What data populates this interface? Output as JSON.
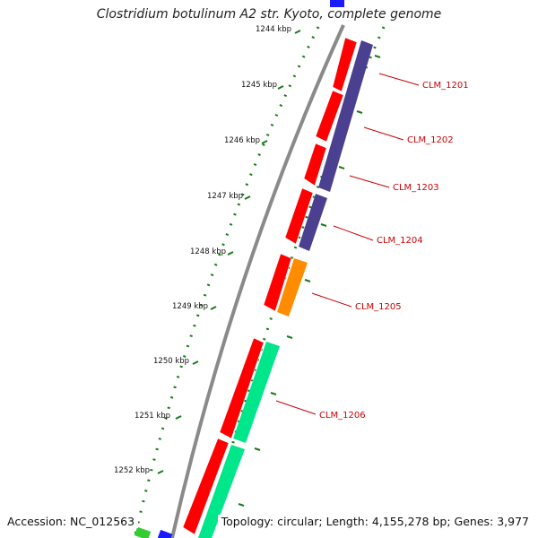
{
  "title": "Clostridium botulinum A2 str. Kyoto, complete genome",
  "footer": {
    "accession": "Accession: NC_012563",
    "summary": "Topology: circular; Length: 4,155,278 bp; Genes: 3,977"
  },
  "colors": {
    "backbone": "#8a8a8a",
    "ticks": "#1a7a1a",
    "cds_forward": "#ff0000",
    "label": "#cc0000"
  },
  "kbp_ticks": [
    "1244 kbp",
    "1245 kbp",
    "1246 kbp",
    "1247 kbp",
    "1248 kbp",
    "1249 kbp",
    "1250 kbp",
    "1251 kbp",
    "1252 kbp"
  ],
  "gene_labels": [
    "CLM_1201",
    "CLM_1202",
    "CLM_1203",
    "CLM_1204",
    "CLM_1205",
    "CLM_1206"
  ],
  "inner_blocks": [
    {
      "color": "#4b3f8f"
    },
    {
      "color": "#4b3f8f"
    },
    {
      "color": "#4b3f8f"
    },
    {
      "color": "#ff8c00"
    },
    {
      "color": "#00e68a"
    },
    {
      "color": "#00e68a"
    }
  ]
}
